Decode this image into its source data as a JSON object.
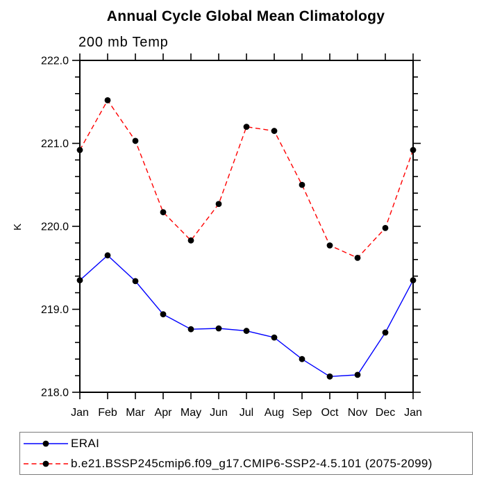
{
  "title": "Annual Cycle Global Mean Climatology",
  "subtitle": "200 mb Temp",
  "chart_data": {
    "type": "line",
    "title": "Annual Cycle Global Mean Climatology",
    "subtitle": "200 mb Temp",
    "xlabel": "",
    "ylabel": "K",
    "categories": [
      "Jan",
      "Feb",
      "Mar",
      "Apr",
      "May",
      "Jun",
      "Jul",
      "Aug",
      "Sep",
      "Oct",
      "Nov",
      "Dec",
      "Jan"
    ],
    "ylim": [
      218.0,
      222.0
    ],
    "y_major_step": 1.0,
    "y_minor_step": 0.2,
    "y_tick_labels": [
      "218.0",
      "219.0",
      "220.0",
      "221.0",
      "222.0"
    ],
    "grid": false,
    "legend_position": "bottom-left-box",
    "series": [
      {
        "name": "ERAI",
        "color": "#0000ff",
        "dash": "solid",
        "marker": "circle",
        "marker_color": "#000000",
        "values": [
          219.35,
          219.65,
          219.34,
          218.94,
          218.76,
          218.77,
          218.74,
          218.66,
          218.4,
          218.19,
          218.21,
          218.72,
          219.35
        ]
      },
      {
        "name": "b.e21.BSSP245cmip6.f09_g17.CMIP6-SSP2-4.5.101 (2075-2099)",
        "color": "#ff0000",
        "dash": "dashed",
        "marker": "circle",
        "marker_color": "#000000",
        "values": [
          220.92,
          221.52,
          221.03,
          220.17,
          219.83,
          220.27,
          221.2,
          221.15,
          220.5,
          219.77,
          219.62,
          219.98,
          220.92
        ]
      }
    ]
  },
  "colors": {
    "axis": "#000000",
    "legend_border": "#7a7a7a",
    "background": "#ffffff",
    "erai_line": "#0000ff",
    "model_line": "#ff0000",
    "marker": "#000000"
  }
}
